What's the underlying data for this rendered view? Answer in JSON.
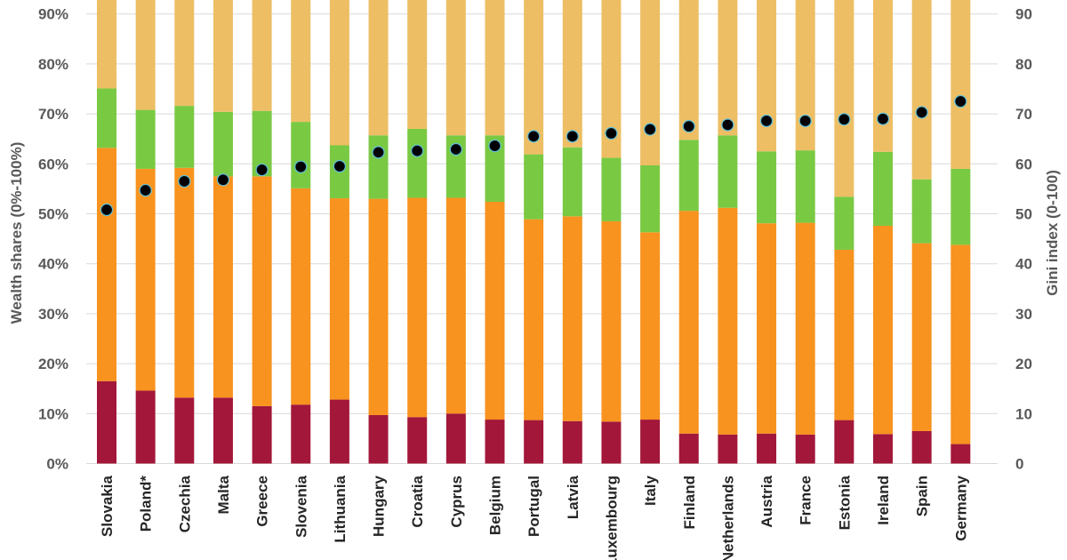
{
  "chart_data": {
    "type": "bar",
    "stacked": true,
    "title": "",
    "ylabel": "Wealth shares (0%-100%)",
    "y2label": "Gini index (0-100)",
    "ylim": [
      0,
      100
    ],
    "y2lim": [
      0,
      100
    ],
    "yticks": [
      "0%",
      "10%",
      "20%",
      "30%",
      "40%",
      "50%",
      "60%",
      "70%",
      "80%",
      "90%"
    ],
    "y2ticks": [
      "0",
      "10",
      "20",
      "30",
      "40",
      "50",
      "60",
      "70",
      "80",
      "90"
    ],
    "grid": true,
    "legend": "none",
    "categories": [
      "Slovakia",
      "Poland*",
      "Czechia",
      "Malta",
      "Greece",
      "Slovenia",
      "Lithuania",
      "Hungary",
      "Croatia",
      "Cyprus",
      "Belgium",
      "Portugal",
      "Latvia",
      "Luxembourg",
      "Italy",
      "Finland",
      "Netherlands",
      "Austria",
      "France",
      "Estonia",
      "Ireland",
      "Spain",
      "Germany"
    ],
    "series": [
      {
        "color": "#A3173A",
        "values": [
          16.5,
          14.6,
          13.2,
          13.2,
          11.5,
          11.8,
          12.8,
          9.7,
          9.3,
          10.0,
          8.8,
          8.7,
          8.5,
          8.4,
          8.8,
          6.0,
          5.8,
          6.0,
          5.8,
          8.7,
          5.9,
          6.5,
          3.9
        ]
      },
      {
        "color": "#F7931E",
        "values": [
          46.7,
          44.4,
          46.0,
          44.3,
          46.0,
          43.3,
          40.3,
          43.3,
          43.9,
          43.2,
          43.6,
          40.2,
          41.0,
          40.1,
          37.5,
          44.6,
          45.4,
          42.1,
          42.4,
          34.1,
          41.7,
          37.6,
          39.9
        ]
      },
      {
        "color": "#7AC943",
        "values": [
          11.9,
          11.8,
          12.4,
          12.9,
          13.1,
          13.3,
          10.6,
          12.7,
          13.8,
          12.5,
          13.3,
          13.0,
          13.8,
          12.7,
          13.4,
          14.2,
          14.5,
          14.4,
          14.5,
          10.6,
          14.8,
          12.8,
          15.2
        ]
      },
      {
        "color": "#EDBE64",
        "values": [
          24.9,
          29.2,
          28.4,
          29.6,
          29.4,
          31.6,
          36.3,
          34.3,
          33.0,
          34.3,
          34.3,
          38.1,
          36.7,
          38.8,
          40.3,
          35.2,
          34.3,
          37.5,
          37.3,
          46.6,
          37.6,
          43.1,
          41.0
        ]
      }
    ],
    "gini": {
      "type": "scatter",
      "axis": "right",
      "color": "#000000",
      "outline": "#5BC0DE",
      "values": [
        50.8,
        54.7,
        56.5,
        56.8,
        58.8,
        59.4,
        59.5,
        62.3,
        62.6,
        62.9,
        63.6,
        65.5,
        65.5,
        66.1,
        66.9,
        67.5,
        67.8,
        68.6,
        68.6,
        68.9,
        69.0,
        70.3,
        72.5
      ]
    }
  }
}
